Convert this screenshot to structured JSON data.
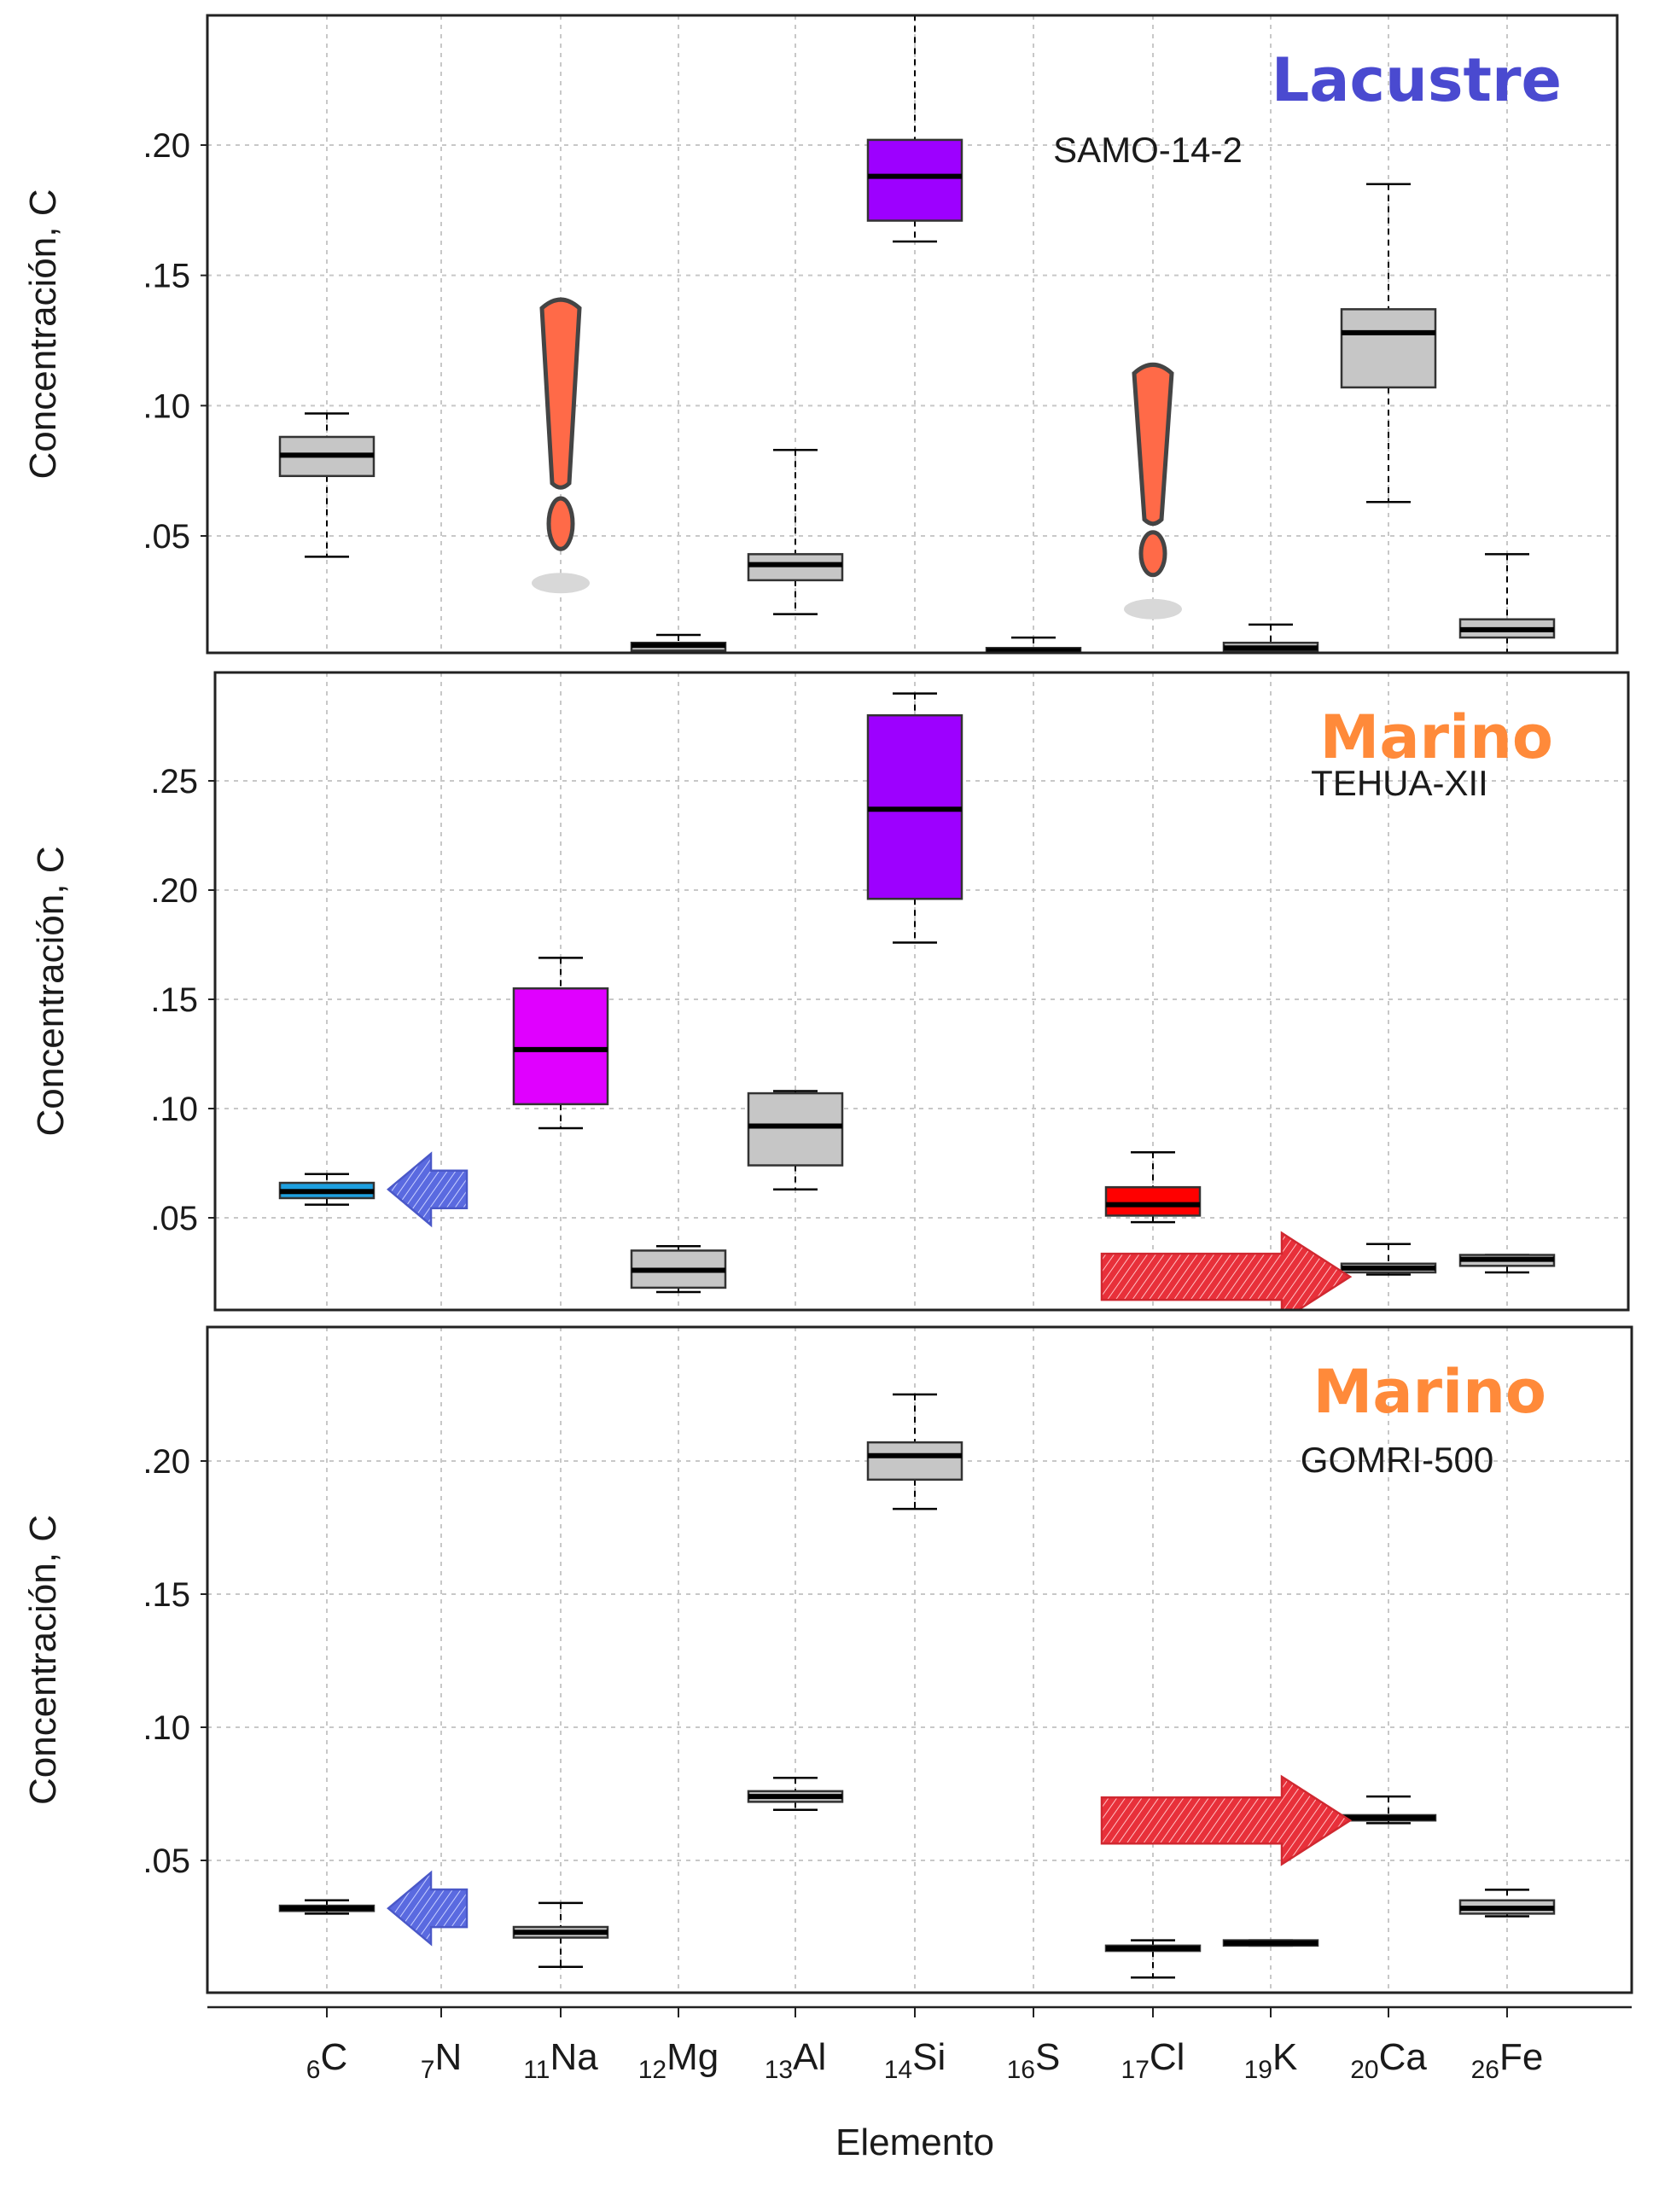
{
  "figure": {
    "xlabel": "Elemento",
    "ylabel": "Concentración, C",
    "elements": [
      {
        "sub": "6",
        "sym": "C"
      },
      {
        "sub": "7",
        "sym": "N"
      },
      {
        "sub": "11",
        "sym": "Na"
      },
      {
        "sub": "12",
        "sym": "Mg"
      },
      {
        "sub": "13",
        "sym": "Al"
      },
      {
        "sub": "14",
        "sym": "Si"
      },
      {
        "sub": "16",
        "sym": "S"
      },
      {
        "sub": "17",
        "sym": "Cl"
      },
      {
        "sub": "19",
        "sym": "K"
      },
      {
        "sub": "20",
        "sym": "Ca"
      },
      {
        "sub": "26",
        "sym": "Fe"
      }
    ]
  },
  "colors": {
    "gray_box": "#c6c6c6",
    "purple": "#9d00ff",
    "magenta": "#e000ff",
    "cyan": "#1ea0e0",
    "red": "#ff0000",
    "blue_arrow": "#5a6ae0",
    "red_arrow": "#e8303a",
    "exclaim": "#ff6a48",
    "lacustre_title": "#4a4ad0",
    "marino_title": "#ff8a3a"
  },
  "chart_data": [
    {
      "type": "box",
      "title": "Lacustre",
      "sample": "SAMO-14-2",
      "ylabel": "Concentración, C",
      "yticks": [
        0.05,
        0.1,
        0.15,
        0.2
      ],
      "ytick_labels": [
        ".05",
        ".10",
        ".15",
        ".20"
      ],
      "ylim": [
        0.0,
        0.25
      ],
      "boxes": [
        {
          "element": "C",
          "min": 0.042,
          "q1": 0.073,
          "median": 0.081,
          "q3": 0.088,
          "max": 0.097,
          "color": "gray"
        },
        {
          "element": "Mg",
          "min": 0.002,
          "q1": 0.006,
          "median": 0.008,
          "q3": 0.009,
          "max": 0.012,
          "color": "gray"
        },
        {
          "element": "Al",
          "min": 0.02,
          "q1": 0.033,
          "median": 0.039,
          "q3": 0.043,
          "max": 0.083,
          "color": "gray"
        },
        {
          "element": "Si",
          "min": 0.163,
          "q1": 0.171,
          "median": 0.188,
          "q3": 0.202,
          "max": 0.25,
          "color": "purple"
        },
        {
          "element": "S",
          "min": 0.002,
          "q1": 0.004,
          "median": 0.006,
          "q3": 0.007,
          "max": 0.011,
          "color": "gray"
        },
        {
          "element": "K",
          "min": 0.003,
          "q1": 0.006,
          "median": 0.007,
          "q3": 0.009,
          "max": 0.016,
          "color": "gray"
        },
        {
          "element": "Ca",
          "min": 0.063,
          "q1": 0.107,
          "median": 0.128,
          "q3": 0.137,
          "max": 0.185,
          "color": "gray"
        },
        {
          "element": "Fe",
          "min": 0.0,
          "q1": 0.011,
          "median": 0.014,
          "q3": 0.018,
          "max": 0.043,
          "color": "gray"
        }
      ],
      "markers": [
        {
          "kind": "exclamation",
          "element": "Na",
          "top": 0.142,
          "bottom": 0.045
        },
        {
          "kind": "exclamation",
          "element": "Cl",
          "top": 0.117,
          "bottom": 0.035
        }
      ]
    },
    {
      "type": "box",
      "title": "Marino",
      "sample": "TEHUA-XII",
      "ylabel": "Concentración, C",
      "yticks": [
        0.05,
        0.1,
        0.15,
        0.2,
        0.25
      ],
      "ytick_labels": [
        ".05",
        ".10",
        ".15",
        ".20",
        ".25"
      ],
      "ylim": [
        0.0,
        0.29
      ],
      "boxes": [
        {
          "element": "C",
          "min": 0.056,
          "q1": 0.059,
          "median": 0.062,
          "q3": 0.066,
          "max": 0.07,
          "color": "cyan"
        },
        {
          "element": "Na",
          "min": 0.091,
          "q1": 0.102,
          "median": 0.127,
          "q3": 0.155,
          "max": 0.169,
          "color": "magenta"
        },
        {
          "element": "Mg",
          "min": 0.016,
          "q1": 0.018,
          "median": 0.026,
          "q3": 0.035,
          "max": 0.037,
          "color": "gray"
        },
        {
          "element": "Al",
          "min": 0.063,
          "q1": 0.074,
          "median": 0.092,
          "q3": 0.107,
          "max": 0.108,
          "color": "gray"
        },
        {
          "element": "Si",
          "min": 0.176,
          "q1": 0.196,
          "median": 0.237,
          "q3": 0.28,
          "max": 0.29,
          "color": "purple"
        },
        {
          "element": "Cl",
          "min": 0.048,
          "q1": 0.051,
          "median": 0.056,
          "q3": 0.064,
          "max": 0.08,
          "color": "red"
        },
        {
          "element": "Ca",
          "min": 0.024,
          "q1": 0.025,
          "median": 0.027,
          "q3": 0.029,
          "max": 0.038,
          "color": "gray"
        },
        {
          "element": "Fe",
          "min": 0.025,
          "q1": 0.028,
          "median": 0.031,
          "q3": 0.033,
          "max": 0.033,
          "color": "gray"
        }
      ],
      "markers": [
        {
          "kind": "arrow-left",
          "color": "blue",
          "from": "N",
          "to": "C",
          "y": 0.063
        },
        {
          "kind": "arrow-right",
          "color": "red",
          "from": "Cl",
          "to": "Ca",
          "y": 0.023
        }
      ]
    },
    {
      "type": "box",
      "title": "Marino",
      "sample": "GOMRI-500",
      "ylabel": "Concentración, C",
      "yticks": [
        0.05,
        0.1,
        0.15,
        0.2
      ],
      "ytick_labels": [
        ".05",
        ".10",
        ".15",
        ".20"
      ],
      "ylim": [
        0.0,
        0.25
      ],
      "boxes": [
        {
          "element": "C",
          "min": 0.03,
          "q1": 0.031,
          "median": 0.032,
          "q3": 0.033,
          "max": 0.035,
          "color": "gray"
        },
        {
          "element": "Na",
          "min": 0.01,
          "q1": 0.021,
          "median": 0.023,
          "q3": 0.025,
          "max": 0.034,
          "color": "gray"
        },
        {
          "element": "Al",
          "min": 0.069,
          "q1": 0.072,
          "median": 0.074,
          "q3": 0.076,
          "max": 0.081,
          "color": "gray"
        },
        {
          "element": "Si",
          "min": 0.182,
          "q1": 0.193,
          "median": 0.202,
          "q3": 0.207,
          "max": 0.225,
          "color": "gray"
        },
        {
          "element": "Cl",
          "min": 0.006,
          "q1": 0.016,
          "median": 0.017,
          "q3": 0.018,
          "max": 0.02,
          "color": "gray"
        },
        {
          "element": "K",
          "min": 0.018,
          "q1": 0.018,
          "median": 0.019,
          "q3": 0.02,
          "max": 0.02,
          "color": "gray"
        },
        {
          "element": "Ca",
          "min": 0.064,
          "q1": 0.065,
          "median": 0.066,
          "q3": 0.067,
          "max": 0.074,
          "color": "gray"
        },
        {
          "element": "Fe",
          "min": 0.029,
          "q1": 0.03,
          "median": 0.032,
          "q3": 0.035,
          "max": 0.039,
          "color": "gray"
        }
      ],
      "markers": [
        {
          "kind": "arrow-left",
          "color": "blue",
          "from": "N",
          "to": "C",
          "y": 0.032
        },
        {
          "kind": "arrow-right",
          "color": "red",
          "from": "Cl",
          "to": "Ca",
          "y": 0.065
        }
      ]
    }
  ]
}
